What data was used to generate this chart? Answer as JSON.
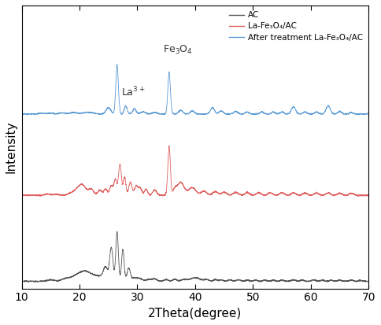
{
  "title": "",
  "xlabel": "2Theta(degree)",
  "ylabel": "Intensity",
  "xlim": [
    10,
    70
  ],
  "colors": {
    "AC": "#555555",
    "LaFe": "#e06060",
    "After": "#5b9bd5"
  },
  "legend_labels": [
    "AC",
    "La-Fe₃O₄/AC",
    "After treatment La-Fe₃O₄/AC"
  ],
  "annotation_La": "La$^{3+}$",
  "annotation_Fe": "Fe$_3$O$_4$",
  "offsets": {
    "AC": 0.0,
    "LaFe": 0.95,
    "After": 1.85
  },
  "scale": {
    "AC": 0.55,
    "LaFe": 0.55,
    "After": 0.55
  }
}
